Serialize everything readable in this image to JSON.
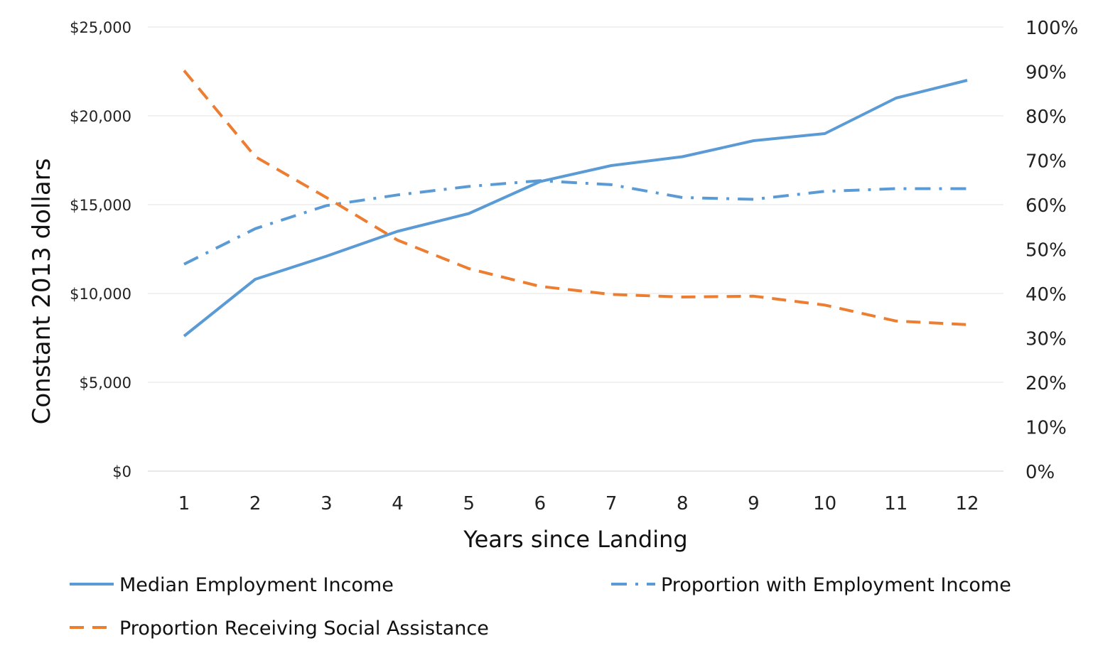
{
  "chart_data": {
    "type": "line",
    "title": "",
    "xlabel": "Years since Landing",
    "ylabel": "Constant 2013 dollars",
    "x": [
      1,
      2,
      3,
      4,
      5,
      6,
      7,
      8,
      9,
      10,
      11,
      12
    ],
    "y_left": {
      "range": [
        0,
        25000
      ],
      "ticks": [
        0,
        5000,
        10000,
        15000,
        20000,
        25000
      ],
      "tick_labels": [
        "$0",
        "$5,000",
        "$10,000",
        "$15,000",
        "$20,000",
        "$25,000"
      ]
    },
    "y_right": {
      "range": [
        0,
        100
      ],
      "ticks": [
        0,
        10,
        20,
        30,
        40,
        50,
        60,
        70,
        80,
        90,
        100
      ],
      "tick_labels": [
        "0%",
        "10%",
        "20%",
        "30%",
        "40%",
        "50%",
        "60%",
        "70%",
        "80%",
        "90%",
        "100%"
      ]
    },
    "grid": true,
    "legend_position": "bottom",
    "series": [
      {
        "name": "Median Employment Income",
        "axis": "left",
        "style": "solid",
        "color": "#5B9BD5",
        "values": [
          7600,
          10800,
          12100,
          13500,
          14500,
          16300,
          17200,
          17700,
          18600,
          19000,
          21000,
          22000
        ]
      },
      {
        "name": "Proportion with Employment Income",
        "axis": "right",
        "style": "dash-dot",
        "color": "#5B9BD5",
        "values": [
          46.6,
          54.6,
          59.8,
          62.2,
          64.1,
          65.4,
          64.5,
          61.6,
          61.2,
          63.0,
          63.6,
          63.6
        ]
      },
      {
        "name": "Proportion Receiving Social Assistance",
        "axis": "right",
        "style": "dashed",
        "color": "#ED7D31",
        "values": [
          90.2,
          70.8,
          61.6,
          52.0,
          45.6,
          41.6,
          39.8,
          39.2,
          39.4,
          37.4,
          33.8,
          33.0
        ]
      }
    ]
  }
}
